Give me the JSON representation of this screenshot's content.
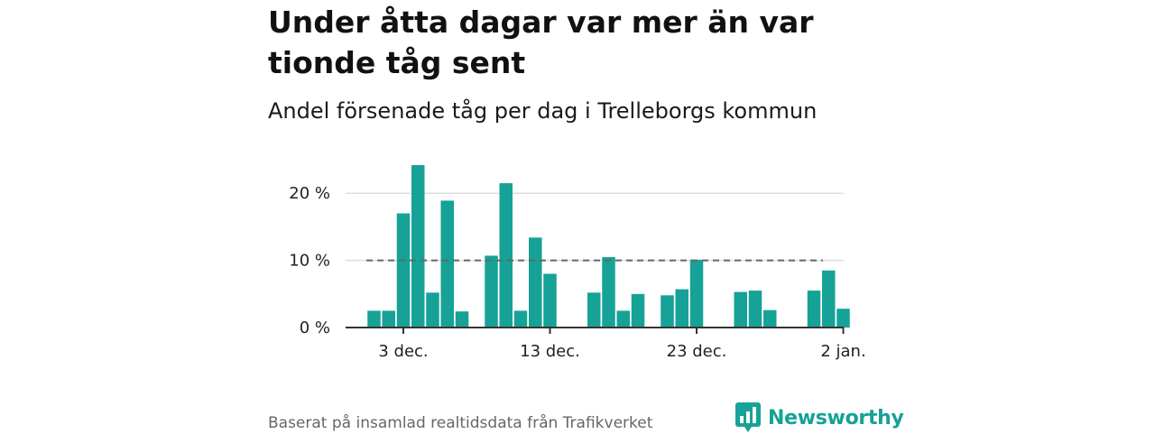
{
  "header": {
    "title": "Under åtta dagar var mer än var tionde tåg sent",
    "subtitle": "Andel försenade tåg per dag i Trelleborgs kommun"
  },
  "footer": {
    "source": "Baserat på insamlad realtidsdata från Trafikverket",
    "brand": "Newsworthy",
    "brand_icon": "bar-chart-speech-bubble-icon"
  },
  "colors": {
    "bar": "#16a296",
    "reference_line": "#666666",
    "grid": "#dddddd",
    "axis": "#333333",
    "brand": "#16a296"
  },
  "chart_data": {
    "type": "bar",
    "x_unit": "day",
    "x_start": "2023-12-01",
    "x": [
      "2023-12-01",
      "2023-12-02",
      "2023-12-03",
      "2023-12-04",
      "2023-12-05",
      "2023-12-06",
      "2023-12-07",
      "2023-12-09",
      "2023-12-10",
      "2023-12-11",
      "2023-12-12",
      "2023-12-13",
      "2023-12-16",
      "2023-12-17",
      "2023-12-18",
      "2023-12-19",
      "2023-12-21",
      "2023-12-22",
      "2023-12-23",
      "2023-12-26",
      "2023-12-27",
      "2023-12-28",
      "2023-12-31",
      "2024-01-01",
      "2024-01-02"
    ],
    "values": [
      2.5,
      2.5,
      17,
      24.2,
      5.2,
      18.9,
      2.4,
      10.7,
      21.5,
      2.5,
      13.4,
      8,
      5.2,
      10.5,
      2.5,
      5,
      4.8,
      5.7,
      10.1,
      5.3,
      5.5,
      2.6,
      5.5,
      8.5,
      2.8
    ],
    "ylim": [
      0,
      25
    ],
    "y_ticks": [
      0,
      10,
      20
    ],
    "y_tick_labels": [
      "0 %",
      "10 %",
      "20 %"
    ],
    "x_ticks": [
      "2023-12-03",
      "2023-12-13",
      "2023-12-23",
      "2024-01-02"
    ],
    "x_tick_labels": [
      "3 dec.",
      "13 dec.",
      "23 dec.",
      "2 jan."
    ],
    "reference_line": {
      "y": 10,
      "style": "dashed"
    },
    "grid": "horizontal"
  }
}
